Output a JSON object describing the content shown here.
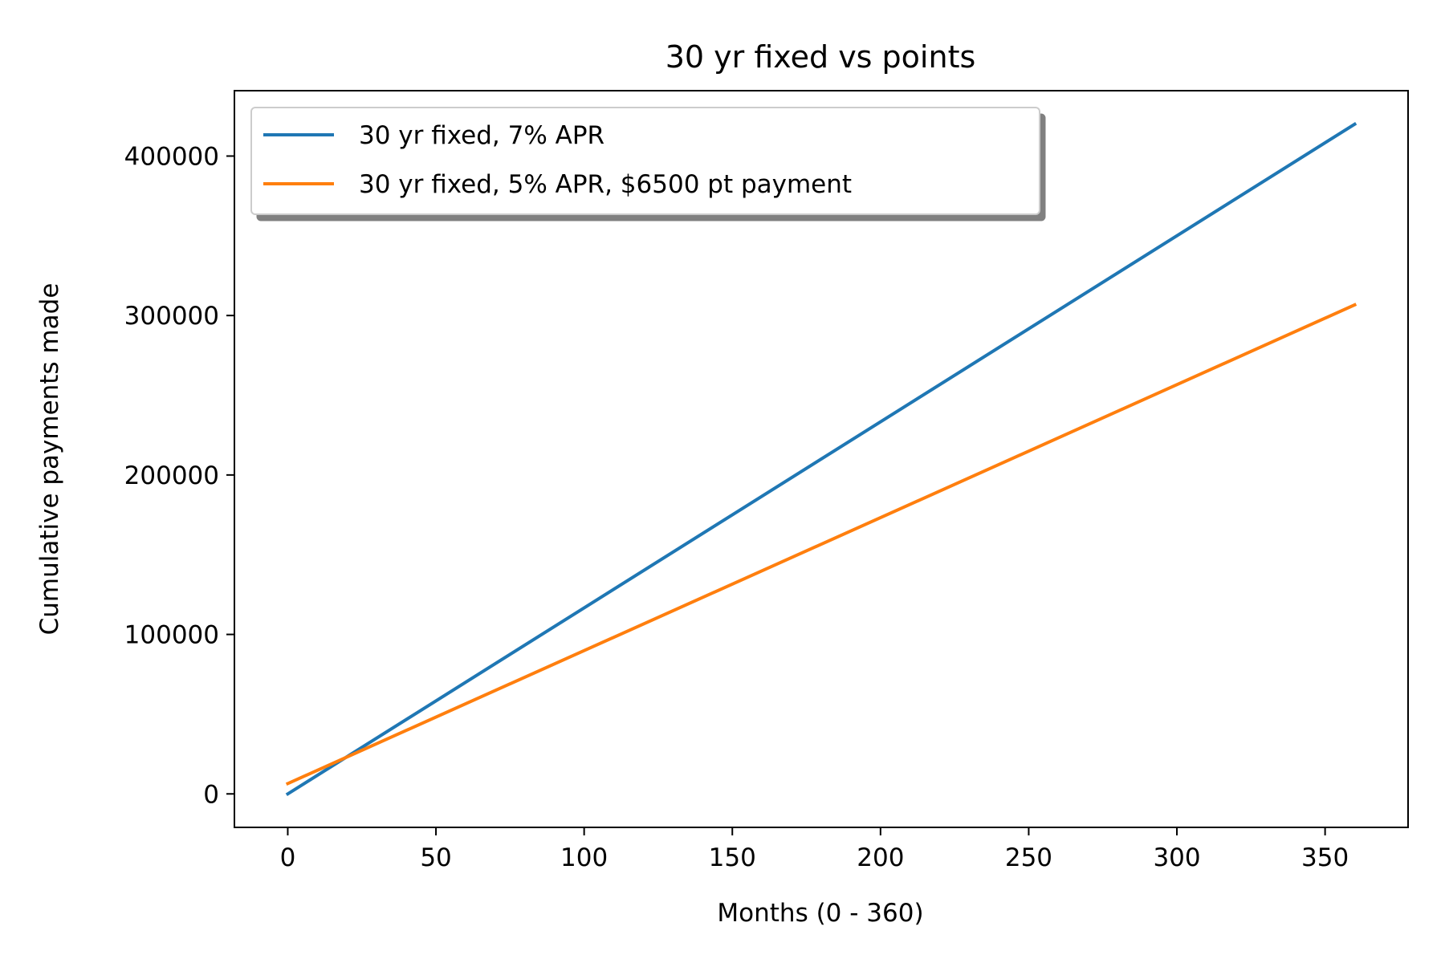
{
  "chart_data": {
    "type": "line",
    "title": "30 yr fixed vs points",
    "xlabel": "Months (0 - 360)",
    "ylabel": "Cumulative payments made",
    "xlim": [
      -18,
      378
    ],
    "ylim": [
      -21000,
      441000
    ],
    "x_ticks": [
      0,
      50,
      100,
      150,
      200,
      250,
      300,
      350
    ],
    "y_ticks": [
      0,
      100000,
      200000,
      300000,
      400000
    ],
    "grid": false,
    "legend_position": "upper-left",
    "series": [
      {
        "name": "30 yr fixed, 7% APR",
        "color": "#1f77b4",
        "x": [
          0,
          360
        ],
        "y": [
          0,
          420000
        ]
      },
      {
        "name": "30 yr fixed, 5% APR, $6500 pt payment",
        "color": "#ff7f0e",
        "x": [
          0,
          360
        ],
        "y": [
          6500,
          306700
        ]
      }
    ]
  }
}
